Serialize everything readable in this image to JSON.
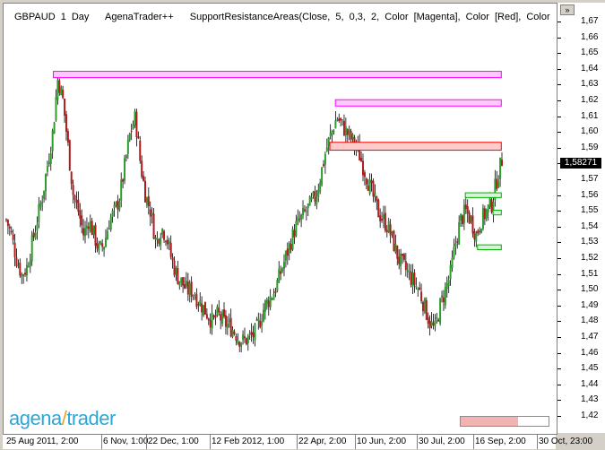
{
  "header": {
    "title": "GBPAUD 1 Day   AgenaTrader++   SupportResistanceAreas(Close, 5, 0,3, 2, Color [Magenta], Color [Red], Color"
  },
  "logo": {
    "part1": "agena",
    "part2": "trader"
  },
  "price_axis": {
    "ticks": [
      "1,67",
      "1,66",
      "1,65",
      "1,64",
      "1,63",
      "1,62",
      "1,61",
      "1,60",
      "1,59",
      "1,58",
      "1,57",
      "1,56",
      "1,55",
      "1,54",
      "1,53",
      "1,52",
      "1,51",
      "1,50",
      "1,49",
      "1,48",
      "1,47",
      "1,46",
      "1,45",
      "1,44",
      "1,43",
      "1,42"
    ],
    "current_price": "1,58271",
    "scroll_button_label": "»"
  },
  "time_axis": {
    "labels": [
      "25 Aug 2011, 2:00",
      "6 Nov, 1:00",
      "22 Dec, 1:00",
      "12 Feb 2012, 1:00",
      "22 Apr, 2:00",
      "10 Jun, 2:00",
      "30 Jul, 2:00",
      "16 Sep, 2:00",
      "30 Oct, 23:00"
    ]
  },
  "progress": {
    "fraction": 0.65
  },
  "colors": {
    "up_candle": "#2e9b2e",
    "down_candle": "#b01b1b",
    "wick": "#000000",
    "resistance_magenta": "#ff00ff",
    "resistance_red": "#ff0000",
    "support_green": "#00b000"
  },
  "chart_data": {
    "type": "candlestick",
    "ylim": [
      1.415,
      1.675
    ],
    "close_path": [
      1.545,
      1.535,
      1.52,
      1.51,
      1.515,
      1.53,
      1.545,
      1.56,
      1.58,
      1.6,
      1.635,
      1.62,
      1.59,
      1.56,
      1.55,
      1.535,
      1.545,
      1.535,
      1.525,
      1.53,
      1.545,
      1.55,
      1.56,
      1.58,
      1.6,
      1.61,
      1.58,
      1.56,
      1.55,
      1.53,
      1.54,
      1.535,
      1.52,
      1.51,
      1.505,
      1.5,
      1.5,
      1.495,
      1.49,
      1.485,
      1.48,
      1.485,
      1.48,
      1.478,
      1.475,
      1.47,
      1.468,
      1.47,
      1.472,
      1.48,
      1.49,
      1.495,
      1.5,
      1.51,
      1.52,
      1.53,
      1.54,
      1.545,
      1.55,
      1.555,
      1.56,
      1.575,
      1.59,
      1.6,
      1.61,
      1.605,
      1.6,
      1.595,
      1.59,
      1.58,
      1.57,
      1.56,
      1.55,
      1.545,
      1.54,
      1.53,
      1.52,
      1.515,
      1.51,
      1.505,
      1.5,
      1.49,
      1.48,
      1.475,
      1.49,
      1.5,
      1.51,
      1.53,
      1.545,
      1.55,
      1.545,
      1.535,
      1.545,
      1.55,
      1.555,
      1.57,
      1.583
    ],
    "zones": [
      {
        "color": "magenta",
        "top": 1.639,
        "bottom": 1.635,
        "from": 0.09,
        "to": 0.9
      },
      {
        "color": "magenta",
        "top": 1.621,
        "bottom": 1.617,
        "from": 0.6,
        "to": 0.9
      },
      {
        "color": "red",
        "top": 1.594,
        "bottom": 1.589,
        "from": 0.59,
        "to": 0.9
      },
      {
        "color": "green",
        "top": 1.562,
        "bottom": 1.559,
        "from": 0.835,
        "to": 0.9
      },
      {
        "color": "green",
        "top": 1.551,
        "bottom": 1.548,
        "from": 0.885,
        "to": 0.9
      },
      {
        "color": "green",
        "top": 1.529,
        "bottom": 1.526,
        "from": 0.857,
        "to": 0.9
      }
    ]
  }
}
